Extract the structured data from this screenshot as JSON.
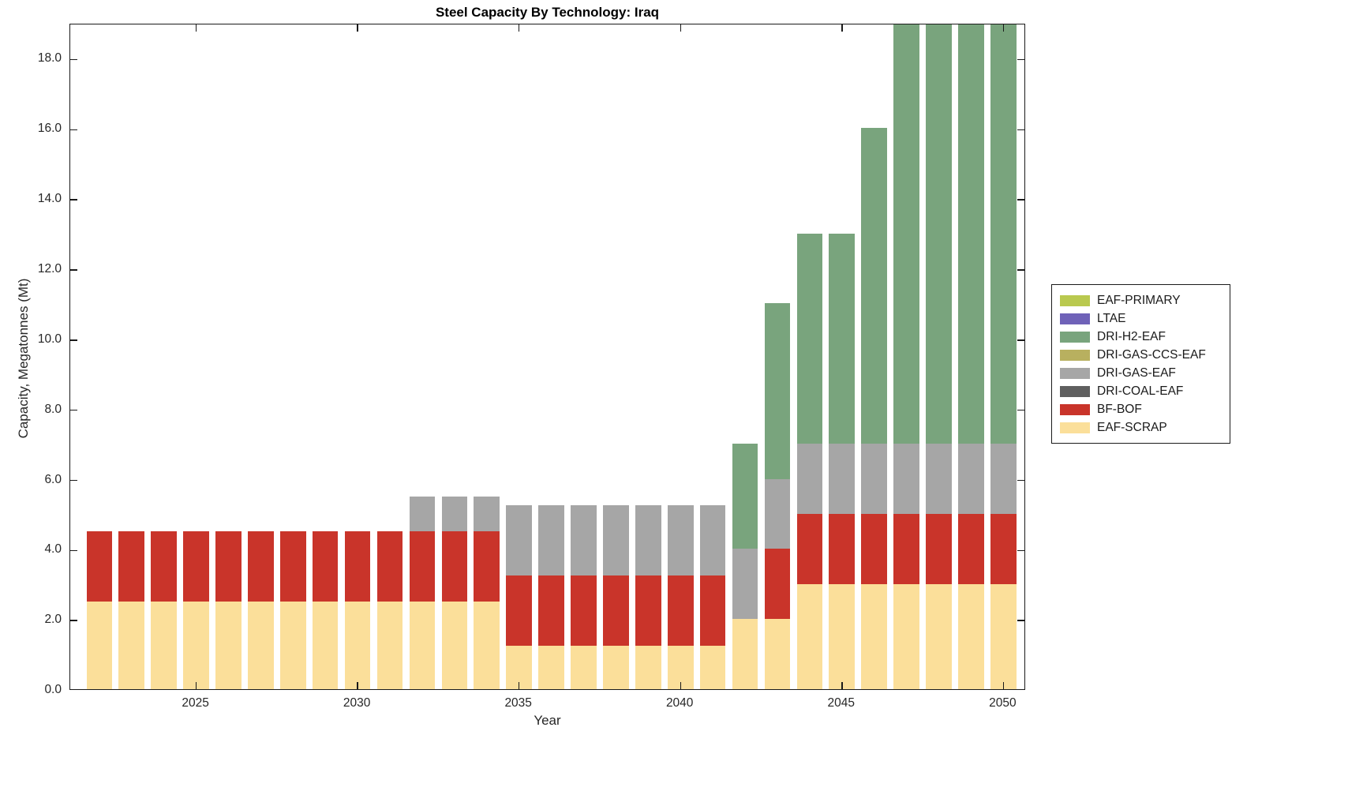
{
  "title": "Steel Capacity By Technology: Iraq",
  "xlabel": "Year",
  "ylabel": "Capacity, Megatonnes (Mt)",
  "chart_data": {
    "type": "bar",
    "stacked": true,
    "title": "Steel Capacity By Technology: Iraq",
    "xlabel": "Year",
    "ylabel": "Capacity, Megatonnes (Mt)",
    "xlim": [
      2021.1,
      2050.7
    ],
    "ylim": [
      0,
      19
    ],
    "bar_width": 0.8,
    "grid": false,
    "x_ticks": [
      2025,
      2030,
      2035,
      2040,
      2045,
      2050
    ],
    "x_tick_labels": [
      "2025",
      "2030",
      "2035",
      "2040",
      "2045",
      "2050"
    ],
    "y_ticks": [
      0,
      2,
      4,
      6,
      8,
      10,
      12,
      14,
      16,
      18
    ],
    "y_tick_labels": [
      "0.0",
      "2.0",
      "4.0",
      "6.0",
      "8.0",
      "10.0",
      "12.0",
      "14.0",
      "16.0",
      "18.0"
    ],
    "categories": [
      2022,
      2023,
      2024,
      2025,
      2026,
      2027,
      2028,
      2029,
      2030,
      2031,
      2032,
      2033,
      2034,
      2035,
      2036,
      2037,
      2038,
      2039,
      2040,
      2041,
      2042,
      2043,
      2044,
      2045,
      2046,
      2047,
      2048,
      2049,
      2050
    ],
    "series": [
      {
        "name": "EAF-SCRAP",
        "color": "#fbdf9a",
        "values": [
          2.5,
          2.5,
          2.5,
          2.5,
          2.5,
          2.5,
          2.5,
          2.5,
          2.5,
          2.5,
          2.5,
          2.5,
          2.5,
          1.25,
          1.25,
          1.25,
          1.25,
          1.25,
          1.25,
          1.25,
          2.0,
          2.0,
          3.0,
          3.0,
          3.0,
          3.0,
          3.0,
          3.0,
          3.0
        ]
      },
      {
        "name": "BF-BOF",
        "color": "#c9342a",
        "values": [
          2.0,
          2.0,
          2.0,
          2.0,
          2.0,
          2.0,
          2.0,
          2.0,
          2.0,
          2.0,
          2.0,
          2.0,
          2.0,
          2.0,
          2.0,
          2.0,
          2.0,
          2.0,
          2.0,
          2.0,
          0,
          2.0,
          2.0,
          2.0,
          2.0,
          2.0,
          2.0,
          2.0,
          2.0
        ]
      },
      {
        "name": "DRI-COAL-EAF",
        "color": "#5f5f5f",
        "values": [
          0,
          0,
          0,
          0,
          0,
          0,
          0,
          0,
          0,
          0,
          0,
          0,
          0,
          0,
          0,
          0,
          0,
          0,
          0,
          0,
          0,
          0,
          0,
          0,
          0,
          0,
          0,
          0,
          0
        ]
      },
      {
        "name": "DRI-GAS-EAF",
        "color": "#a6a6a6",
        "values": [
          0,
          0,
          0,
          0,
          0,
          0,
          0,
          0,
          0,
          0,
          1.0,
          1.0,
          1.0,
          2.0,
          2.0,
          2.0,
          2.0,
          2.0,
          2.0,
          2.0,
          2.0,
          2.0,
          2.0,
          2.0,
          2.0,
          2.0,
          2.0,
          2.0,
          2.0
        ]
      },
      {
        "name": "DRI-GAS-CCS-EAF",
        "color": "#b8b05f",
        "values": [
          0,
          0,
          0,
          0,
          0,
          0,
          0,
          0,
          0,
          0,
          0,
          0,
          0,
          0,
          0,
          0,
          0,
          0,
          0,
          0,
          0,
          0,
          0,
          0,
          0,
          0,
          0,
          0,
          0
        ]
      },
      {
        "name": "DRI-H2-EAF",
        "color": "#79a47d",
        "values": [
          0,
          0,
          0,
          0,
          0,
          0,
          0,
          0,
          0,
          0,
          0,
          0,
          0,
          0,
          0,
          0,
          0,
          0,
          0,
          0,
          3.0,
          5.0,
          6.0,
          6.0,
          9.0,
          13.0,
          13.0,
          13.0,
          13.0
        ]
      },
      {
        "name": "LTAE",
        "color": "#6f62b8",
        "values": [
          0,
          0,
          0,
          0,
          0,
          0,
          0,
          0,
          0,
          0,
          0,
          0,
          0,
          0,
          0,
          0,
          0,
          0,
          0,
          0,
          0,
          0,
          0,
          0,
          0,
          0,
          0,
          0,
          0
        ]
      },
      {
        "name": "EAF-PRIMARY",
        "color": "#b9c94f",
        "values": [
          0,
          0,
          0,
          0,
          0,
          0,
          0,
          0,
          0,
          0,
          0,
          0,
          0,
          0,
          0,
          0,
          0,
          0,
          0,
          0,
          0,
          0,
          0,
          0,
          0,
          0,
          0,
          0,
          0
        ]
      }
    ],
    "legend": {
      "position": "right-outside",
      "items": [
        "EAF-PRIMARY",
        "LTAE",
        "DRI-H2-EAF",
        "DRI-GAS-CCS-EAF",
        "DRI-GAS-EAF",
        "DRI-COAL-EAF",
        "BF-BOF",
        "EAF-SCRAP"
      ]
    }
  }
}
